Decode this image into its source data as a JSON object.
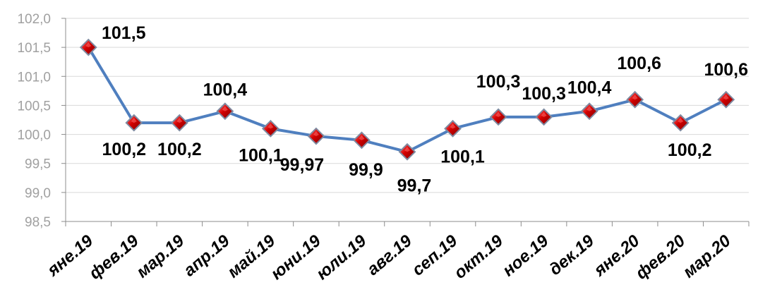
{
  "chart_data": {
    "type": "line",
    "title": "",
    "xlabel": "",
    "ylabel": "",
    "categories": [
      "яне.19",
      "фев.19",
      "мар.19",
      "апр.19",
      "май.19",
      "юни.19",
      "юли.19",
      "авг.19",
      "сеп.19",
      "окт.19",
      "ное.19",
      "дек.19",
      "яне.20",
      "фев.20",
      "мар.20"
    ],
    "series": [
      {
        "values": [
          101.5,
          100.2,
          100.2,
          100.4,
          100.1,
          99.97,
          99.9,
          99.7,
          100.1,
          100.3,
          100.3,
          100.4,
          100.6,
          100.2,
          100.6
        ],
        "labels": [
          "101,5",
          "100,2",
          "100,2",
          "100,4",
          "100,1",
          "99,97",
          "99,9",
          "99,7",
          "100,1",
          "100,3",
          "100,3",
          "100,4",
          "100,6",
          "100,2",
          "100,6"
        ]
      }
    ],
    "ylim": [
      98.5,
      102.0
    ],
    "yticks": [
      "98,5",
      "99,0",
      "99,5",
      "100,0",
      "100,5",
      "101,0",
      "101,5",
      "102,0"
    ],
    "grid": true,
    "legend": "none",
    "colors": {
      "line": "#4f7fbf",
      "marker_fill": "#c00000",
      "marker_highlight": "#ff6a6a",
      "marker_border": "#7f8aa0",
      "grid": "#d9d9d9",
      "axis": "#8c8c8c",
      "ytick_text": "#a0a0a0",
      "label_text": "#000000"
    }
  }
}
